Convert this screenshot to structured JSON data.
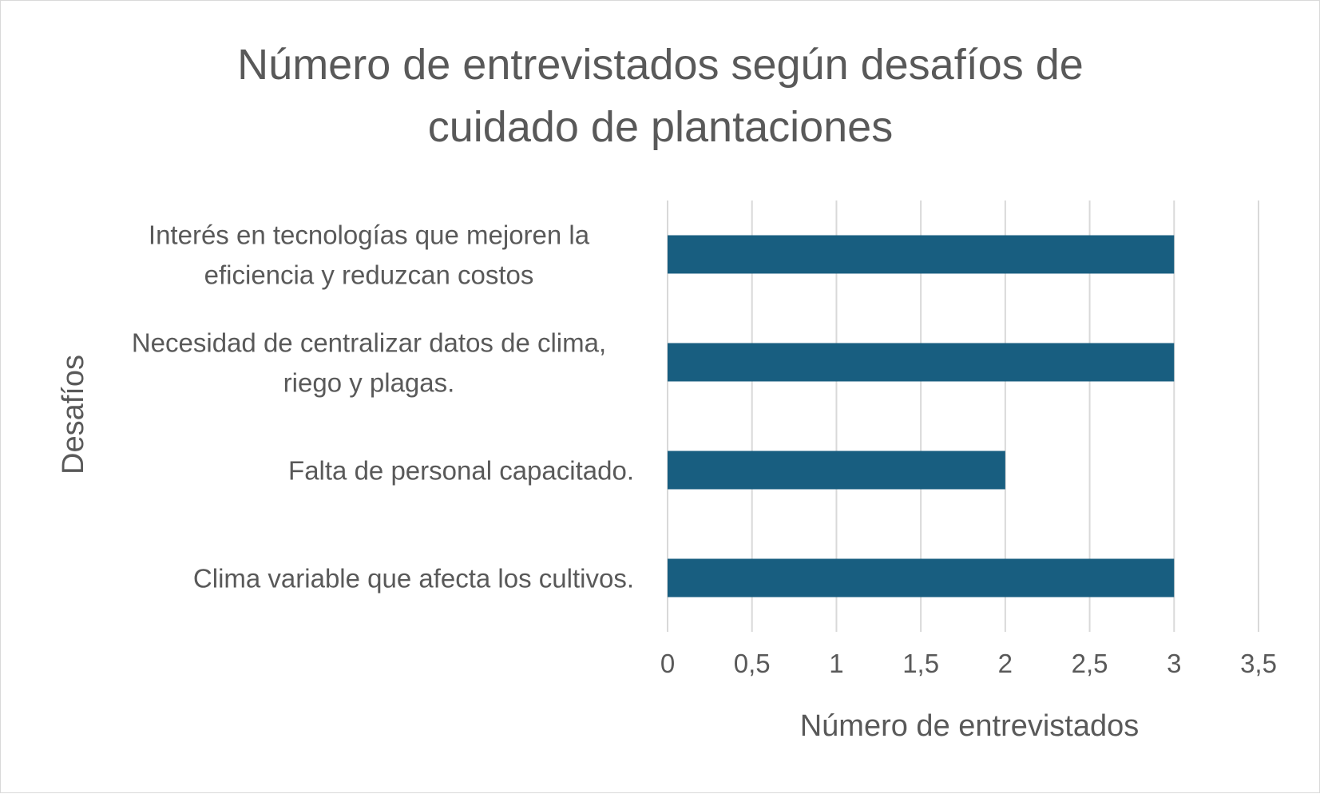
{
  "chart_data": {
    "type": "bar",
    "orientation": "horizontal",
    "title_lines": [
      "Número de entrevistados según desafíos de",
      "cuidado de plantaciones"
    ],
    "xlabel": "Número de entrevistados",
    "ylabel": "Desafíos",
    "categories": [
      {
        "lines": [
          "Interés en tecnologías que mejoren la",
          "eficiencia y reduzcan costos"
        ],
        "value": 3
      },
      {
        "lines": [
          "Necesidad de centralizar datos de clima,",
          "riego y plagas."
        ],
        "value": 3
      },
      {
        "lines": [
          "Falta de personal capacitado."
        ],
        "value": 2
      },
      {
        "lines": [
          "Clima variable que afecta los cultivos."
        ],
        "value": 3
      }
    ],
    "xlim": [
      0,
      3.5
    ],
    "xticks": [
      "0",
      "0,5",
      "1",
      "1,5",
      "2",
      "2,5",
      "3",
      "3,5"
    ],
    "grid": "vertical",
    "legend": "none",
    "bar_color": "#185e80",
    "grid_color": "#d9d9d9",
    "text_color": "#595959"
  }
}
